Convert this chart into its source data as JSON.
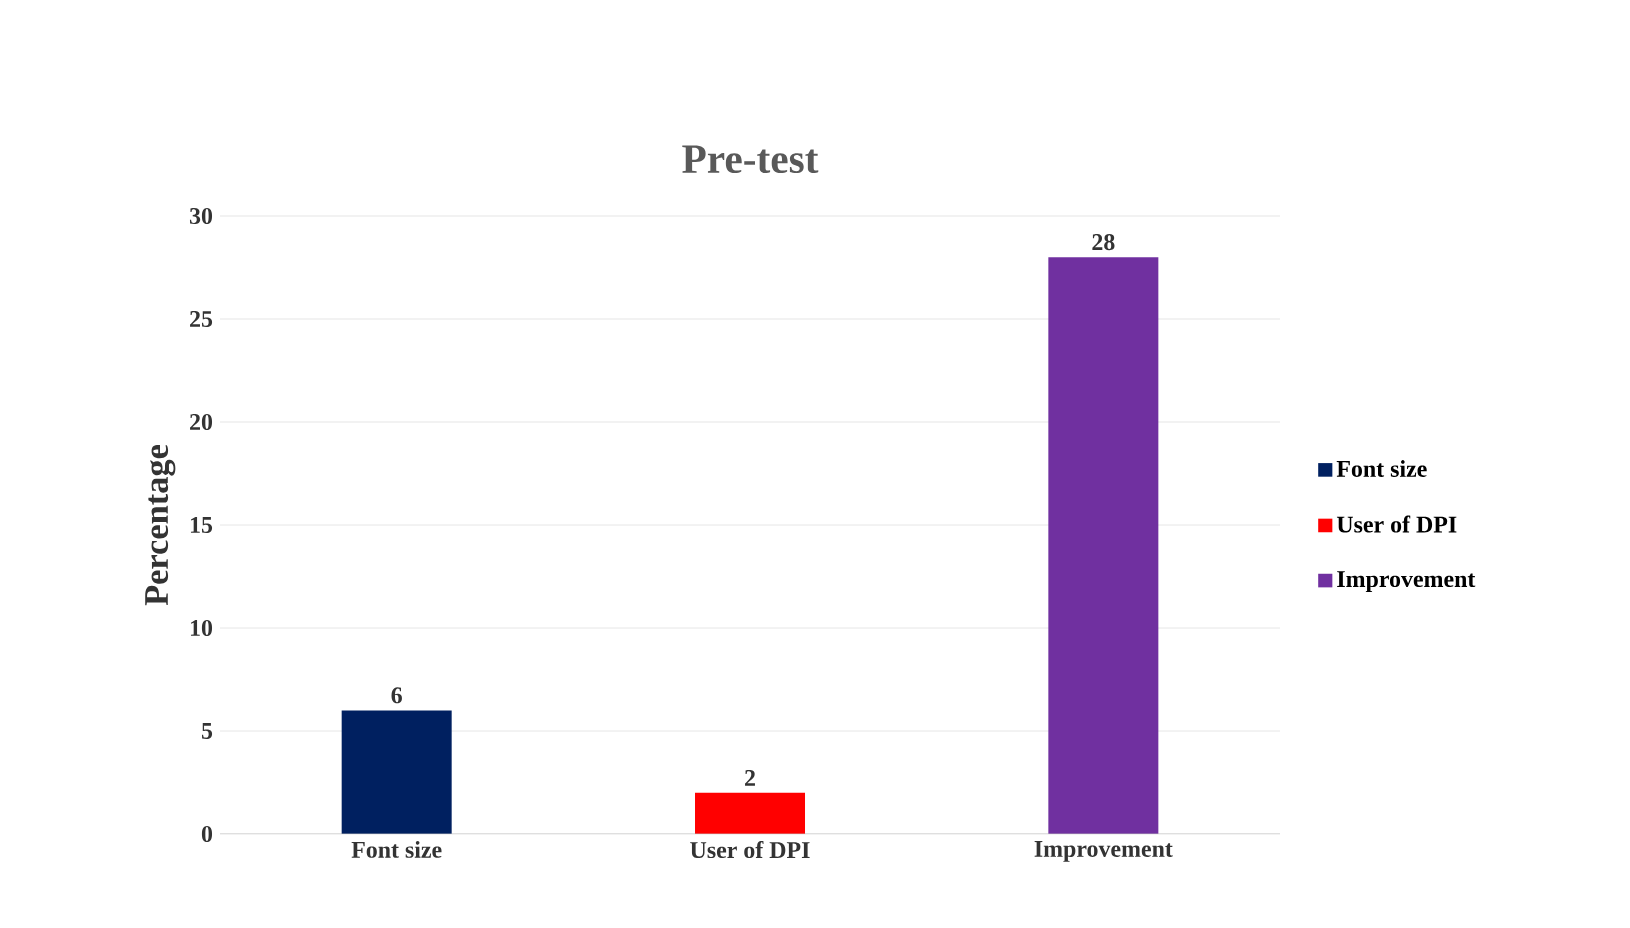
{
  "chart_data": {
    "type": "bar",
    "title": "Pre-test",
    "ylabel": "Percentage",
    "categories": [
      "Font size",
      "User of DPI",
      "Improvement"
    ],
    "series": [
      {
        "name": "Font size",
        "color": "#002060",
        "values": [
          6,
          null,
          null
        ]
      },
      {
        "name": "User of DPI",
        "color": "#ff0000",
        "values": [
          null,
          2,
          null
        ]
      },
      {
        "name": "Improvement",
        "color": "#7030a0",
        "values": [
          null,
          null,
          28
        ]
      }
    ],
    "ylim": [
      0,
      30
    ],
    "yticks": [
      0,
      5,
      10,
      15,
      20,
      25,
      30
    ],
    "grid": "y",
    "legend": "right",
    "data_labels": true
  }
}
